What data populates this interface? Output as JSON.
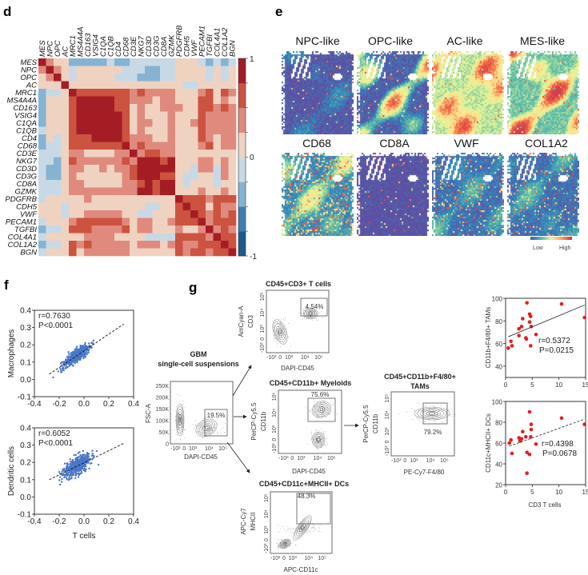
{
  "panels": {
    "d": "d",
    "e": "e",
    "f": "f",
    "g": "g"
  },
  "heatmap": {
    "genes": [
      "MES",
      "NPC",
      "OPC",
      "AC",
      "MRC1",
      "MS4A4A",
      "CD163",
      "VSIG4",
      "C1QA",
      "C1QB",
      "CD4",
      "CD68",
      "CD3E",
      "NKG7",
      "CD3D",
      "CD3G",
      "CD8A",
      "GZMK",
      "PDGFRB",
      "CDH5",
      "VWF",
      "PECAM1",
      "TGFBI",
      "COL4A1",
      "COL1A2",
      "BGN"
    ],
    "italic_from_index": 4,
    "colorbar": {
      "max_label": "1",
      "mid_label": "0",
      "min_label": "-1",
      "colors": [
        "#1d5a8c",
        "#3f7fb0",
        "#87b3d2",
        "#c8d9e6",
        "#f0d2c0",
        "#e08a7e",
        "#cc5340",
        "#a51d24"
      ]
    },
    "matrix": [
      [
        1,
        0.4,
        0.1,
        0.1,
        -0.4,
        -0.4,
        -0.4,
        -0.4,
        -0.4,
        -0.1,
        -0.4,
        -0.4,
        -0.1,
        -0.1,
        -0.1,
        -0.1,
        -0.1,
        -0.1,
        0.1,
        0.1,
        0.1,
        -0.1,
        -0.4,
        -0.1,
        -0.4,
        -0.1
      ],
      [
        0.4,
        1,
        0.4,
        0.1,
        -0.1,
        0.1,
        0.1,
        0.1,
        0.1,
        0.1,
        0.1,
        -0.1,
        -0.1,
        -0.1,
        -0.4,
        -0.4,
        -0.1,
        -0.1,
        0.1,
        0.1,
        0.1,
        0.1,
        -0.1,
        0.1,
        -0.1,
        0.1
      ],
      [
        0.1,
        0.4,
        1,
        0.1,
        -0.1,
        0.1,
        0.1,
        0.1,
        0.1,
        0.1,
        -0.1,
        -0.1,
        -0.1,
        -0.4,
        -0.4,
        -0.4,
        -0.1,
        -0.1,
        0.1,
        0.1,
        0.1,
        0.1,
        -0.1,
        0.1,
        -0.1,
        0.1
      ],
      [
        0.1,
        0.1,
        0.1,
        1,
        0.1,
        0.1,
        0.1,
        0.1,
        0.1,
        0.1,
        0.1,
        0.1,
        0.1,
        0.1,
        0.1,
        0.1,
        0.1,
        0.1,
        0.1,
        -0.1,
        -0.1,
        0.1,
        0.1,
        0.1,
        0.1,
        0.1
      ],
      [
        -0.4,
        -0.1,
        -0.1,
        0.1,
        1,
        0.6,
        0.6,
        0.6,
        0.6,
        0.6,
        0.6,
        0.6,
        0.4,
        0.6,
        0.4,
        0.4,
        0.4,
        0.4,
        0.1,
        0.1,
        0.1,
        0.4,
        0.6,
        0.1,
        0.6,
        0.4
      ],
      [
        -0.4,
        0.1,
        0.1,
        0.1,
        0.6,
        1,
        0.9,
        0.9,
        0.9,
        0.9,
        0.6,
        0.6,
        0.4,
        0.4,
        0.4,
        0.1,
        0.4,
        0.4,
        0.1,
        0.1,
        0.1,
        0.6,
        0.6,
        0.1,
        0.4,
        0.1
      ],
      [
        -0.4,
        0.1,
        0.1,
        0.1,
        0.6,
        0.9,
        1,
        0.9,
        0.9,
        0.9,
        0.6,
        0.6,
        0.1,
        0.4,
        0.1,
        0.1,
        0.4,
        0.4,
        0.4,
        0.1,
        0.1,
        0.6,
        0.6,
        0.4,
        0.6,
        0.4
      ],
      [
        -0.4,
        0.1,
        0.1,
        0.1,
        0.6,
        0.9,
        0.9,
        1,
        0.9,
        0.9,
        0.9,
        0.6,
        0.1,
        0.4,
        0.1,
        0.1,
        0.1,
        0.4,
        0.1,
        0.1,
        0.1,
        0.6,
        0.4,
        0.4,
        0.4,
        0.4
      ],
      [
        -0.4,
        0.1,
        0.1,
        0.1,
        0.6,
        0.9,
        0.9,
        0.9,
        1,
        0.9,
        0.9,
        0.6,
        0.1,
        0.4,
        0.4,
        0.1,
        0.1,
        0.4,
        0.1,
        0.1,
        0.4,
        0.6,
        0.4,
        0.4,
        0.4,
        0.4
      ],
      [
        -0.1,
        0.1,
        0.1,
        0.1,
        0.6,
        0.9,
        0.9,
        0.9,
        0.9,
        1,
        0.9,
        0.6,
        0.1,
        0.4,
        0.1,
        0.1,
        0.1,
        0.4,
        0.1,
        0.1,
        0.1,
        0.6,
        0.4,
        0.4,
        0.4,
        0.4
      ],
      [
        -0.4,
        0.1,
        -0.1,
        0.1,
        0.6,
        0.6,
        0.6,
        0.9,
        0.9,
        0.9,
        1,
        0.6,
        0.4,
        0.4,
        0.4,
        0.1,
        0.1,
        0.4,
        0.1,
        0.1,
        0.1,
        0.6,
        0.4,
        0.1,
        0.4,
        0.4
      ],
      [
        -0.4,
        -0.1,
        -0.1,
        0.1,
        0.6,
        0.6,
        0.6,
        0.6,
        0.6,
        0.6,
        0.6,
        1,
        0.4,
        0.6,
        0.4,
        0.4,
        0.4,
        0.4,
        0.1,
        0.1,
        0.1,
        0.4,
        0.6,
        0.1,
        0.4,
        0.4
      ],
      [
        -0.1,
        -0.1,
        -0.1,
        0.1,
        0.4,
        0.4,
        0.1,
        0.1,
        0.1,
        0.1,
        0.4,
        0.4,
        1,
        0.4,
        0.6,
        0.6,
        0.4,
        0.4,
        0.1,
        0.1,
        0.1,
        0.1,
        0.1,
        0.1,
        0.1,
        0.1
      ],
      [
        -0.1,
        -0.1,
        -0.4,
        0.1,
        0.6,
        0.4,
        0.4,
        0.4,
        0.4,
        0.4,
        0.4,
        0.6,
        0.4,
        1,
        0.9,
        0.9,
        0.6,
        0.9,
        0.1,
        0.1,
        0.1,
        0.4,
        0.4,
        0.1,
        0.4,
        0.1
      ],
      [
        -0.1,
        -0.4,
        -0.4,
        0.1,
        0.4,
        0.4,
        0.1,
        0.1,
        0.4,
        0.1,
        0.4,
        0.4,
        0.6,
        0.9,
        1,
        0.9,
        0.9,
        0.9,
        0.1,
        0.1,
        -0.1,
        0.4,
        0.4,
        -0.1,
        0.4,
        0.1
      ],
      [
        -0.1,
        -0.4,
        -0.4,
        0.1,
        0.4,
        0.1,
        0.1,
        0.1,
        0.1,
        0.1,
        0.1,
        0.4,
        0.6,
        0.9,
        0.9,
        1,
        0.6,
        0.6,
        0.1,
        -0.1,
        -0.1,
        0.1,
        0.1,
        -0.1,
        0.4,
        0.1
      ],
      [
        -0.1,
        -0.1,
        -0.1,
        0.1,
        0.4,
        0.4,
        0.1,
        0.1,
        0.1,
        0.1,
        0.1,
        0.4,
        0.4,
        0.6,
        0.9,
        0.6,
        1,
        0.9,
        0.1,
        -0.1,
        0.1,
        0.1,
        0.1,
        -0.1,
        0.1,
        0.1
      ],
      [
        -0.1,
        -0.1,
        -0.1,
        0.1,
        0.4,
        0.4,
        0.4,
        0.4,
        0.4,
        0.4,
        0.4,
        0.4,
        0.4,
        0.9,
        0.9,
        0.6,
        0.9,
        1,
        0.1,
        0.1,
        0.1,
        0.4,
        0.1,
        0.1,
        0.4,
        0.1
      ],
      [
        -0.1,
        0.1,
        0.1,
        0.1,
        0.1,
        0.1,
        0.4,
        0.1,
        0.1,
        0.1,
        0.1,
        0.1,
        0.1,
        0.1,
        0.1,
        0.1,
        0.1,
        0.1,
        1,
        0.6,
        0.6,
        0.6,
        0.4,
        0.6,
        0.6,
        0.6
      ],
      [
        0.1,
        0.1,
        0.1,
        -0.1,
        0.1,
        0.1,
        0.1,
        0.1,
        0.1,
        0.1,
        0.1,
        0.1,
        0.1,
        0.1,
        -0.1,
        -0.1,
        0.1,
        0.1,
        0.6,
        1,
        0.6,
        0.6,
        0.1,
        0.6,
        0.4,
        0.4
      ],
      [
        0.1,
        0.1,
        0.1,
        -0.1,
        0.1,
        0.1,
        0.4,
        0.4,
        0.4,
        0.4,
        0.4,
        0.1,
        0.1,
        -0.1,
        -0.1,
        0.1,
        0.1,
        0.1,
        0.6,
        0.6,
        1,
        0.6,
        0.4,
        0.6,
        0.4,
        0.6
      ],
      [
        -0.1,
        0.1,
        0.1,
        0.1,
        0.4,
        0.6,
        0.6,
        0.6,
        0.6,
        0.6,
        0.6,
        0.4,
        0.1,
        0.4,
        0.4,
        0.1,
        0.1,
        0.4,
        0.6,
        0.6,
        0.6,
        1,
        0.4,
        0.6,
        0.6,
        0.6
      ],
      [
        -0.4,
        -0.1,
        -0.1,
        0.1,
        0.6,
        0.6,
        0.6,
        0.4,
        0.4,
        0.4,
        0.4,
        0.6,
        0.1,
        0.4,
        0.4,
        0.1,
        0.1,
        0.1,
        0.4,
        0.1,
        0.1,
        0.4,
        1,
        0.4,
        0.6,
        0.4
      ],
      [
        -0.1,
        0.1,
        0.1,
        0.1,
        0.1,
        0.1,
        0.4,
        0.4,
        0.4,
        0.4,
        0.1,
        0.1,
        0.1,
        0.1,
        -0.1,
        -0.1,
        -0.1,
        -0.1,
        0.6,
        0.6,
        0.6,
        0.6,
        0.4,
        1,
        0.6,
        0.6
      ],
      [
        -0.4,
        -0.1,
        -0.1,
        0.1,
        0.6,
        0.4,
        0.6,
        0.4,
        0.4,
        0.4,
        0.4,
        0.4,
        0.1,
        0.4,
        0.4,
        0.4,
        0.1,
        0.4,
        0.6,
        0.4,
        0.4,
        0.6,
        0.6,
        0.6,
        1,
        0.6
      ],
      [
        -0.1,
        0.1,
        0.1,
        0.1,
        0.6,
        0.1,
        0.4,
        0.4,
        0.4,
        0.4,
        0.4,
        0.4,
        0.1,
        0.1,
        0.1,
        0.1,
        0.1,
        0.1,
        0.6,
        0.4,
        0.6,
        0.6,
        0.4,
        0.6,
        0.6,
        1
      ]
    ]
  },
  "spatial": {
    "titles": [
      "NPC-like",
      "OPC-like",
      "AC-like",
      "MES-like",
      "CD68",
      "CD8A",
      "VWF",
      "COL1A2"
    ],
    "legend_low": "Low",
    "legend_high": "High"
  },
  "chart_data": [
    {
      "type": "scatter",
      "panel": "f-top",
      "ylabel": "Macrophages",
      "xlabel": "",
      "xlim": [
        -0.4,
        0.4
      ],
      "ylim": [
        -0.1,
        0.4
      ],
      "xticks": [
        "-0.4",
        "-0.2",
        "0.0",
        "0.2",
        "0.4"
      ],
      "yticks": [
        "0.4",
        "0.3",
        "0.2",
        "0.1",
        "0.0",
        "-0.1"
      ],
      "r_label": "r=0.7630",
      "p_label": "P<0.0001",
      "trend": {
        "x": [
          -0.28,
          0.32
        ],
        "y": [
          0.03,
          0.32
        ]
      },
      "color": "#4a78c8"
    },
    {
      "type": "scatter",
      "panel": "f-bottom",
      "ylabel": "Dendritic cells",
      "xlabel": "T cells",
      "xlim": [
        -0.4,
        0.4
      ],
      "ylim": [
        -0.1,
        0.4
      ],
      "xticks": [
        "-0.4",
        "-0.2",
        "0.0",
        "0.2",
        "0.4"
      ],
      "yticks": [
        "0.4",
        "0.3",
        "0.2",
        "0.1",
        "0.0",
        "-0.1"
      ],
      "r_label": "r=0.6052",
      "p_label": "P<0.0001",
      "trend": {
        "x": [
          -0.28,
          0.32
        ],
        "y": [
          0.1,
          0.31
        ]
      },
      "color": "#4a78c8"
    },
    {
      "type": "scatter",
      "panel": "g-right-top",
      "ylabel": "CD11b+F4/80+ TAMs",
      "xlabel": "",
      "xlim": [
        0,
        15
      ],
      "ylim": [
        30,
        100
      ],
      "xticks": [
        "0",
        "5",
        "10",
        "15"
      ],
      "yticks": [
        "100",
        "80",
        "60",
        "40"
      ],
      "r_label": "r=0.5372",
      "p_label": "P=0.0215",
      "color": "#e02020",
      "x": [
        0.5,
        1,
        1.2,
        2.5,
        2.5,
        3,
        3.2,
        4,
        3.8,
        3.9,
        4.5,
        4.5,
        4.7,
        4.7,
        4.8,
        5.7,
        10.5,
        14.8
      ],
      "y": [
        56,
        62,
        58,
        67,
        73,
        75,
        82,
        96,
        65,
        64,
        79,
        86,
        84,
        58,
        75,
        68,
        95,
        83
      ],
      "trend": {
        "x": [
          0.5,
          14.8
        ],
        "y": [
          66,
          94
        ]
      }
    },
    {
      "type": "scatter",
      "panel": "g-right-bottom",
      "ylabel": "CD11c+MHCII+ DCs",
      "xlabel": "CD3 T cells",
      "xlim": [
        0,
        15
      ],
      "ylim": [
        20,
        100
      ],
      "xticks": [
        "0",
        "5",
        "10",
        "15"
      ],
      "yticks": [
        "100",
        "80",
        "60",
        "40",
        "20"
      ],
      "r_label": "r=0.4398",
      "p_label": "P=0.0678",
      "color": "#e02020",
      "x": [
        0.7,
        1,
        1.2,
        2.5,
        2.7,
        3,
        3.2,
        3.8,
        4,
        4,
        4.5,
        4.5,
        4.7,
        4.8,
        4.8,
        5.7,
        10.5,
        14.8
      ],
      "y": [
        60,
        63,
        50,
        65,
        62,
        64,
        71,
        66,
        51,
        31,
        49,
        90,
        66,
        78,
        73,
        59,
        84,
        78
      ],
      "trend": {
        "x": [
          0.7,
          14.8
        ],
        "y": [
          57,
          83
        ]
      }
    }
  ],
  "flow": {
    "gbm_title_1": "GBM",
    "gbm_title_2": "single-cell suspensions",
    "log_ticks": [
      "-10³",
      "0",
      "10³",
      "10⁴",
      "10⁵"
    ],
    "fsc_ticks": [
      "250K",
      "200K",
      "150K",
      "100K",
      "50K",
      "0"
    ],
    "plots": {
      "gbm": {
        "title": "",
        "xlabel": "DAPI-CD45",
        "ylabel1": "FSC-A",
        "ylabel2": "",
        "gate": "19.5%"
      },
      "tcells": {
        "title": "CD45+CD3+ T cells",
        "xlabel": "DAPI-CD45",
        "ylabel1": "AmCyan-A",
        "ylabel2": "CD3",
        "gate": "4.54%"
      },
      "myeloid": {
        "title": "CD45+CD11b+ Myeloids",
        "xlabel": "DAPI-CD45",
        "ylabel1": "PerCP-Cy5.5",
        "ylabel2": "CD11b",
        "gate": "75.6%"
      },
      "tams": {
        "title": "CD45+CD11b+F4/80+",
        "title2": "TAMs",
        "xlabel": "PE-Cy7-F4/80",
        "ylabel1": "PerCP-Cy5.5",
        "ylabel2": "CD11b",
        "gate": "79.2%"
      },
      "dcs": {
        "title": "CD45+CD11c+MHCII+ DCs",
        "xlabel": "APC-CD11c",
        "ylabel1": "APC-Cy7",
        "ylabel2": "MHCII",
        "gate": "48.3%"
      }
    }
  }
}
